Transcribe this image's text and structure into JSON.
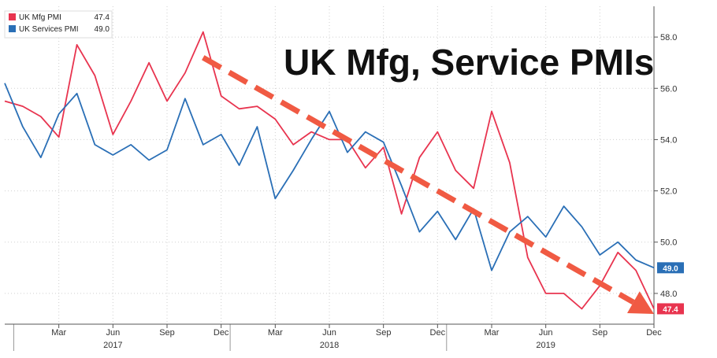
{
  "chart_data": {
    "type": "line",
    "title": "UK Mfg, Service PMIs",
    "xlabel": "",
    "ylabel": "",
    "ylim": [
      46.8,
      59.2
    ],
    "yticks": [
      48.0,
      50.0,
      52.0,
      54.0,
      56.0,
      58.0
    ],
    "ytick_labels": [
      "48.0",
      "50.0",
      "52.0",
      "54.0",
      "56.0",
      "58.0"
    ],
    "x_months": [
      "2016-12",
      "2017-01",
      "2017-02",
      "2017-03",
      "2017-04",
      "2017-05",
      "2017-06",
      "2017-07",
      "2017-08",
      "2017-09",
      "2017-10",
      "2017-11",
      "2017-12",
      "2018-01",
      "2018-02",
      "2018-03",
      "2018-04",
      "2018-05",
      "2018-06",
      "2018-07",
      "2018-08",
      "2018-09",
      "2018-10",
      "2018-11",
      "2018-12",
      "2019-01",
      "2019-02",
      "2019-03",
      "2019-04",
      "2019-05",
      "2019-06",
      "2019-07",
      "2019-08",
      "2019-09",
      "2019-10",
      "2019-11",
      "2019-12"
    ],
    "xticks": [
      {
        "label": "Mar",
        "month": "2017-03"
      },
      {
        "label": "Jun",
        "month": "2017-06"
      },
      {
        "label": "Sep",
        "month": "2017-09"
      },
      {
        "label": "Dec",
        "month": "2017-12"
      },
      {
        "label": "Mar",
        "month": "2018-03"
      },
      {
        "label": "Jun",
        "month": "2018-06"
      },
      {
        "label": "Sep",
        "month": "2018-09"
      },
      {
        "label": "Dec",
        "month": "2018-12"
      },
      {
        "label": "Mar",
        "month": "2019-03"
      },
      {
        "label": "Jun",
        "month": "2019-06"
      },
      {
        "label": "Sep",
        "month": "2019-09"
      },
      {
        "label": "Dec",
        "month": "2019-12"
      }
    ],
    "year_labels": [
      {
        "label": "2017",
        "month": "2017-06"
      },
      {
        "label": "2018",
        "month": "2018-06"
      },
      {
        "label": "2019",
        "month": "2019-06"
      }
    ],
    "series": [
      {
        "name": "UK Mfg PMI",
        "last_value": "47.4",
        "color": "#e8344f",
        "values": [
          55.5,
          55.3,
          54.9,
          54.1,
          57.7,
          56.5,
          54.2,
          55.5,
          57.0,
          55.5,
          56.6,
          58.2,
          55.7,
          55.2,
          55.3,
          54.8,
          53.8,
          54.3,
          54.0,
          54.0,
          52.9,
          53.7,
          51.1,
          53.3,
          54.3,
          52.8,
          52.1,
          55.1,
          53.1,
          49.4,
          48.0,
          48.0,
          47.4,
          48.3,
          49.6,
          48.9,
          47.4
        ]
      },
      {
        "name": "UK Services PMI",
        "last_value": "49.0",
        "color": "#2a6fb6",
        "values": [
          56.2,
          54.5,
          53.3,
          55.0,
          55.8,
          53.8,
          53.4,
          53.8,
          53.2,
          53.6,
          55.6,
          53.8,
          54.2,
          53.0,
          54.5,
          51.7,
          52.8,
          54.0,
          55.1,
          53.5,
          54.3,
          53.9,
          52.2,
          50.4,
          51.2,
          50.1,
          51.3,
          48.9,
          50.4,
          51.0,
          50.2,
          51.4,
          50.6,
          49.5,
          50.0,
          49.3,
          49.0
        ]
      }
    ],
    "trend_arrow": {
      "color": "#f05a43",
      "from": {
        "month": "2017-11",
        "value": 57.2
      },
      "to": {
        "month": "2019-12",
        "value": 47.2
      }
    },
    "legend_position": "top-left",
    "grid": true
  }
}
